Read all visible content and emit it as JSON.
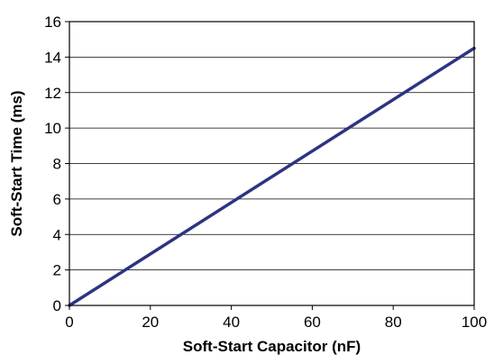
{
  "chart_data": {
    "type": "line",
    "title": "",
    "xlabel": "Soft-Start Capacitor (nF)",
    "ylabel": "Soft-Start Time (ms)",
    "xlim": [
      0,
      100
    ],
    "ylim": [
      0,
      16
    ],
    "x_ticks": [
      0,
      20,
      40,
      60,
      80,
      100
    ],
    "y_ticks": [
      0,
      2,
      4,
      6,
      8,
      10,
      12,
      14,
      16
    ],
    "x_tick_labels": [
      "0",
      "20",
      "40",
      "60",
      "80",
      "100"
    ],
    "y_tick_labels": [
      "0",
      "2",
      "4",
      "6",
      "8",
      "10",
      "12",
      "14",
      "16"
    ],
    "grid": "horizontal",
    "legend": "none",
    "colors": {
      "line": "#2e3480",
      "grid": "#000000",
      "frame": "#000000"
    },
    "series": [
      {
        "x": [
          0,
          100
        ],
        "y": [
          0,
          14.5
        ]
      }
    ]
  }
}
